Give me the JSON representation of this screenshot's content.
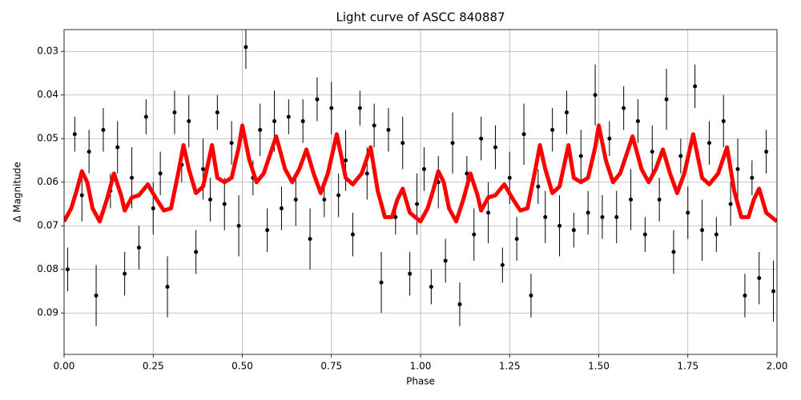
{
  "chart_data": {
    "type": "scatter",
    "title": "Light curve of ASCC 840887",
    "x_label": "Phase",
    "y_label": "Δ Magnitude",
    "xlim": [
      0,
      2
    ],
    "ylim": [
      0.0995,
      0.025
    ],
    "xticks": [
      {
        "value": 0,
        "label": "0.00"
      },
      {
        "value": 0.25,
        "label": "0.25"
      },
      {
        "value": 0.5,
        "label": "0.50"
      },
      {
        "value": 0.75,
        "label": "0.75"
      },
      {
        "value": 1,
        "label": "1.00"
      },
      {
        "value": 1.25,
        "label": "1.25"
      },
      {
        "value": 1.5,
        "label": "1.50"
      },
      {
        "value": 1.75,
        "label": "1.75"
      },
      {
        "value": 2,
        "label": "2.00"
      }
    ],
    "yticks": [
      0.03,
      0.04,
      0.05,
      0.06,
      0.07,
      0.08,
      0.09
    ],
    "grid": true,
    "points": {
      "color": "#000000",
      "x": [
        0.01,
        0.03,
        0.05,
        0.07,
        0.09,
        0.11,
        0.13,
        0.15,
        0.17,
        0.19,
        0.21,
        0.23,
        0.25,
        0.27,
        0.29,
        0.31,
        0.33,
        0.35,
        0.37,
        0.39,
        0.41,
        0.43,
        0.45,
        0.47,
        0.49,
        0.51,
        0.53,
        0.55,
        0.57,
        0.59,
        0.61,
        0.63,
        0.65,
        0.67,
        0.69,
        0.71,
        0.73,
        0.75,
        0.77,
        0.79,
        0.81,
        0.83,
        0.85,
        0.87,
        0.89,
        0.91,
        0.93,
        0.95,
        0.97,
        0.99,
        1.01,
        1.03,
        1.05,
        1.07,
        1.09,
        1.11,
        1.13,
        1.15,
        1.17,
        1.19,
        1.21,
        1.23,
        1.25,
        1.27,
        1.29,
        1.31,
        1.33,
        1.35,
        1.37,
        1.39,
        1.41,
        1.43,
        1.45,
        1.47,
        1.49,
        1.51,
        1.53,
        1.55,
        1.57,
        1.59,
        1.61,
        1.63,
        1.65,
        1.67,
        1.69,
        1.71,
        1.73,
        1.75,
        1.77,
        1.79,
        1.81,
        1.83,
        1.85,
        1.87,
        1.89,
        1.91,
        1.93,
        1.95,
        1.97,
        1.99
      ],
      "values": [
        0.08,
        0.049,
        0.063,
        0.053,
        0.086,
        0.048,
        0.062,
        0.052,
        0.081,
        0.059,
        0.075,
        0.045,
        0.066,
        0.058,
        0.084,
        0.044,
        0.056,
        0.046,
        0.076,
        0.057,
        0.064,
        0.044,
        0.065,
        0.051,
        0.07,
        0.029,
        0.059,
        0.048,
        0.071,
        0.046,
        0.066,
        0.045,
        0.064,
        0.046,
        0.073,
        0.041,
        0.064,
        0.043,
        0.063,
        0.055,
        0.072,
        0.043,
        0.058,
        0.047,
        0.083,
        0.048,
        0.068,
        0.051,
        0.081,
        0.065,
        0.057,
        0.084,
        0.06,
        0.078,
        0.051,
        0.088,
        0.058,
        0.072,
        0.05,
        0.067,
        0.052,
        0.079,
        0.059,
        0.073,
        0.049,
        0.086,
        0.061,
        0.068,
        0.048,
        0.07,
        0.044,
        0.071,
        0.054,
        0.067,
        0.04,
        0.068,
        0.05,
        0.068,
        0.043,
        0.064,
        0.046,
        0.072,
        0.053,
        0.064,
        0.041,
        0.076,
        0.054,
        0.067,
        0.038,
        0.071,
        0.051,
        0.072,
        0.046,
        0.065,
        0.057,
        0.086,
        0.059,
        0.082,
        0.053,
        0.085
      ],
      "errors": [
        0.005,
        0.004,
        0.006,
        0.005,
        0.007,
        0.005,
        0.004,
        0.006,
        0.005,
        0.007,
        0.005,
        0.004,
        0.006,
        0.005,
        0.007,
        0.005,
        0.004,
        0.006,
        0.005,
        0.007,
        0.005,
        0.004,
        0.006,
        0.005,
        0.007,
        0.005,
        0.004,
        0.006,
        0.005,
        0.007,
        0.005,
        0.004,
        0.006,
        0.005,
        0.007,
        0.005,
        0.004,
        0.006,
        0.005,
        0.007,
        0.005,
        0.004,
        0.006,
        0.005,
        0.007,
        0.005,
        0.004,
        0.006,
        0.005,
        0.007,
        0.005,
        0.004,
        0.006,
        0.005,
        0.007,
        0.005,
        0.004,
        0.006,
        0.005,
        0.007,
        0.005,
        0.004,
        0.006,
        0.005,
        0.007,
        0.005,
        0.004,
        0.006,
        0.005,
        0.007,
        0.005,
        0.004,
        0.006,
        0.005,
        0.007,
        0.005,
        0.004,
        0.006,
        0.005,
        0.007,
        0.005,
        0.004,
        0.006,
        0.005,
        0.007,
        0.005,
        0.004,
        0.006,
        0.005,
        0.007,
        0.005,
        0.004,
        0.006,
        0.005,
        0.007,
        0.005,
        0.004,
        0.006,
        0.005,
        0.007
      ]
    },
    "model": {
      "color": "#ff0000",
      "x": [
        0,
        0.02,
        0.035,
        0.05,
        0.065,
        0.08,
        0.1,
        0.12,
        0.14,
        0.16,
        0.17,
        0.19,
        0.21,
        0.235,
        0.26,
        0.28,
        0.3,
        0.32,
        0.335,
        0.35,
        0.37,
        0.39,
        0.415,
        0.43,
        0.45,
        0.47,
        0.49,
        0.5,
        0.52,
        0.54,
        0.56,
        0.595,
        0.62,
        0.64,
        0.66,
        0.68,
        0.7,
        0.72,
        0.74,
        0.765,
        0.79,
        0.81,
        0.835,
        0.86,
        0.88,
        0.9,
        0.92,
        0.935,
        0.95,
        0.97,
        1,
        1.02,
        1.035,
        1.05,
        1.065,
        1.08,
        1.1,
        1.12,
        1.14,
        1.16,
        1.17,
        1.19,
        1.21,
        1.235,
        1.26,
        1.28,
        1.3,
        1.32,
        1.335,
        1.35,
        1.37,
        1.39,
        1.415,
        1.43,
        1.45,
        1.47,
        1.49,
        1.5,
        1.52,
        1.54,
        1.56,
        1.595,
        1.62,
        1.64,
        1.66,
        1.68,
        1.7,
        1.72,
        1.74,
        1.765,
        1.79,
        1.81,
        1.835,
        1.86,
        1.88,
        1.9,
        1.92,
        1.935,
        1.95,
        1.97,
        2
      ],
      "values": [
        0.069,
        0.066,
        0.062,
        0.0575,
        0.06,
        0.066,
        0.069,
        0.064,
        0.058,
        0.063,
        0.0665,
        0.0635,
        0.063,
        0.0605,
        0.064,
        0.0665,
        0.066,
        0.058,
        0.0515,
        0.057,
        0.0625,
        0.061,
        0.0515,
        0.059,
        0.06,
        0.059,
        0.052,
        0.047,
        0.055,
        0.06,
        0.058,
        0.0495,
        0.057,
        0.06,
        0.057,
        0.0525,
        0.058,
        0.0625,
        0.058,
        0.049,
        0.059,
        0.0605,
        0.058,
        0.052,
        0.062,
        0.068,
        0.068,
        0.064,
        0.0615,
        0.067,
        0.069,
        0.066,
        0.062,
        0.0575,
        0.06,
        0.066,
        0.069,
        0.064,
        0.058,
        0.063,
        0.0665,
        0.0635,
        0.063,
        0.0605,
        0.064,
        0.0665,
        0.066,
        0.058,
        0.0515,
        0.057,
        0.0625,
        0.061,
        0.0515,
        0.059,
        0.06,
        0.059,
        0.052,
        0.047,
        0.055,
        0.06,
        0.058,
        0.0495,
        0.057,
        0.06,
        0.057,
        0.0525,
        0.058,
        0.0625,
        0.058,
        0.049,
        0.059,
        0.0605,
        0.058,
        0.052,
        0.062,
        0.068,
        0.068,
        0.064,
        0.0615,
        0.067,
        0.069
      ]
    }
  }
}
